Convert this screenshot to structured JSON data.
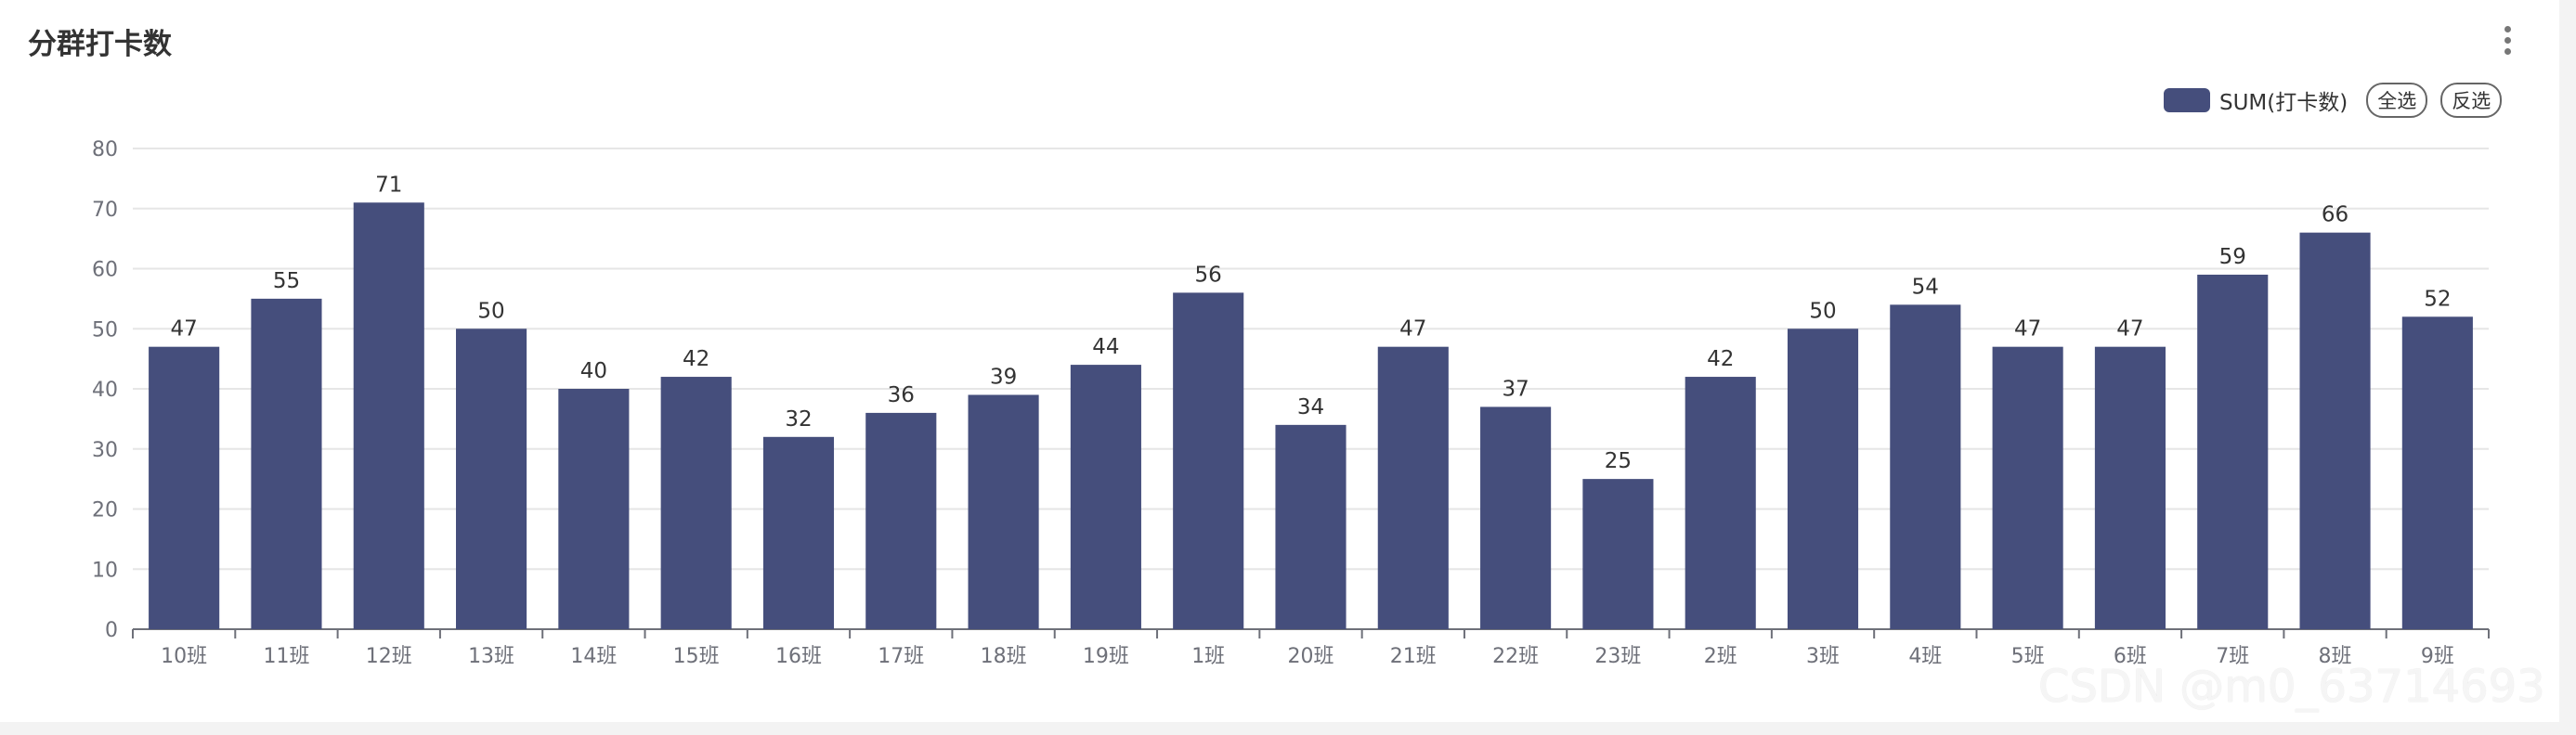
{
  "header": {
    "title": "分群打卡数",
    "menu_icon": "more-vertical-icon"
  },
  "legend": {
    "series_label": "SUM(打卡数)",
    "select_all": "全选",
    "invert_select": "反选"
  },
  "watermark": "CSDN @m0_63714693",
  "colors": {
    "bar": "#454e7c",
    "grid": "#e6e6e6",
    "axis": "#6e7079",
    "text": "#333333"
  },
  "chart_data": {
    "type": "bar",
    "title": "分群打卡数",
    "categories": [
      "10班",
      "11班",
      "12班",
      "13班",
      "14班",
      "15班",
      "16班",
      "17班",
      "18班",
      "19班",
      "1班",
      "20班",
      "21班",
      "22班",
      "23班",
      "2班",
      "3班",
      "4班",
      "5班",
      "6班",
      "7班",
      "8班",
      "9班"
    ],
    "series": [
      {
        "name": "SUM(打卡数)",
        "values": [
          47,
          55,
          71,
          50,
          40,
          42,
          32,
          36,
          39,
          44,
          56,
          34,
          47,
          37,
          25,
          42,
          50,
          54,
          47,
          47,
          59,
          66,
          52
        ]
      }
    ],
    "ylim": [
      0,
      80
    ],
    "yticks": [
      0,
      10,
      20,
      30,
      40,
      50,
      60,
      70,
      80
    ],
    "xlabel": "",
    "ylabel": "",
    "grid": true,
    "legend_position": "top-right",
    "data_labels": true
  }
}
